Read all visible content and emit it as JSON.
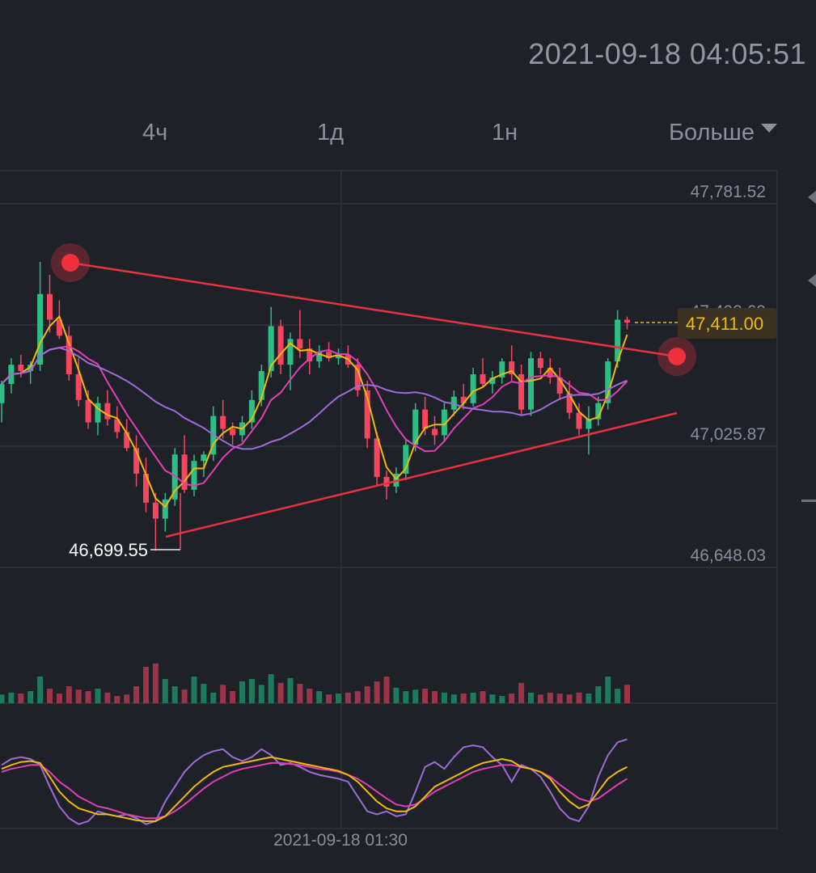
{
  "header": {
    "datetime": "2021-09-18 04:05:51"
  },
  "tabs": [
    {
      "label": "4ч"
    },
    {
      "label": "1д"
    },
    {
      "label": "1н"
    }
  ],
  "more": {
    "label": "Больше",
    "icon": "caret-down-icon"
  },
  "colors": {
    "background": "#1f2129",
    "up": "#2ebd85",
    "down": "#f6465d",
    "volume_up": "#1e7a5c",
    "volume_down": "#9b3547",
    "ma_fast": "#f0b90b",
    "ma_mid": "#e040b6",
    "ma_slow": "#9c6cd8",
    "trendline": "#e8333f",
    "price_tag_bg": "#3b3222",
    "price_tag_text": "#f0b90b"
  },
  "chart_data": {
    "type": "candlestick",
    "price_axis": {
      "ticks": [
        "47,781.52",
        "47,403.69",
        "47,025.87",
        "46,648.03"
      ],
      "range": [
        46648.03,
        47781.52
      ]
    },
    "current_price": "47,411.00",
    "low_marker": {
      "label": "46,699.55",
      "value": 46699.55
    },
    "time_axis": {
      "label": "2021-09-18 01:30"
    },
    "candles": [
      [
        47160,
        47230,
        47100,
        47220
      ],
      [
        47220,
        47300,
        47190,
        47280
      ],
      [
        47280,
        47310,
        47240,
        47260
      ],
      [
        47260,
        47290,
        47220,
        47280
      ],
      [
        47280,
        47600,
        47260,
        47500
      ],
      [
        47500,
        47560,
        47380,
        47420
      ],
      [
        47420,
        47480,
        47360,
        47370
      ],
      [
        47370,
        47400,
        47230,
        47250
      ],
      [
        47250,
        47300,
        47150,
        47170
      ],
      [
        47170,
        47200,
        47080,
        47100
      ],
      [
        47100,
        47180,
        47060,
        47160
      ],
      [
        47160,
        47200,
        47090,
        47110
      ],
      [
        47110,
        47150,
        47050,
        47070
      ],
      [
        47070,
        47110,
        47010,
        47020
      ],
      [
        47020,
        47060,
        46900,
        46940
      ],
      [
        46940,
        46990,
        46820,
        46850
      ],
      [
        46850,
        46880,
        46700,
        46800
      ],
      [
        46800,
        46880,
        46760,
        46860
      ],
      [
        46860,
        47020,
        46840,
        47000
      ],
      [
        47000,
        47060,
        46880,
        46890
      ],
      [
        46890,
        47000,
        46870,
        46980
      ],
      [
        46980,
        47010,
        46930,
        47000
      ],
      [
        47000,
        47150,
        46980,
        47120
      ],
      [
        47120,
        47170,
        47050,
        47080
      ],
      [
        47080,
        47100,
        47030,
        47060
      ],
      [
        47060,
        47120,
        47040,
        47100
      ],
      [
        47100,
        47200,
        47080,
        47170
      ],
      [
        47170,
        47280,
        47150,
        47260
      ],
      [
        47260,
        47460,
        47240,
        47400
      ],
      [
        47400,
        47420,
        47250,
        47280
      ],
      [
        47280,
        47380,
        47200,
        47360
      ],
      [
        47360,
        47450,
        47300,
        47330
      ],
      [
        47330,
        47360,
        47250,
        47290
      ],
      [
        47290,
        47340,
        47270,
        47320
      ],
      [
        47320,
        47350,
        47290,
        47300
      ],
      [
        47300,
        47330,
        47280,
        47310
      ],
      [
        47310,
        47340,
        47270,
        47280
      ],
      [
        47280,
        47300,
        47180,
        47200
      ],
      [
        47200,
        47230,
        47020,
        47050
      ],
      [
        47050,
        47070,
        46900,
        46930
      ],
      [
        46930,
        46950,
        46860,
        46900
      ],
      [
        46900,
        46960,
        46880,
        46940
      ],
      [
        46940,
        47050,
        46920,
        47030
      ],
      [
        47030,
        47160,
        47010,
        47140
      ],
      [
        47140,
        47180,
        47060,
        47080
      ],
      [
        47080,
        47120,
        47030,
        47060
      ],
      [
        47060,
        47160,
        47040,
        47140
      ],
      [
        47140,
        47200,
        47120,
        47180
      ],
      [
        47180,
        47220,
        47140,
        47160
      ],
      [
        47160,
        47270,
        47150,
        47250
      ],
      [
        47250,
        47300,
        47210,
        47220
      ],
      [
        47220,
        47260,
        47190,
        47240
      ],
      [
        47240,
        47300,
        47220,
        47290
      ],
      [
        47290,
        47340,
        47230,
        47250
      ],
      [
        47250,
        47280,
        47120,
        47140
      ],
      [
        47140,
        47320,
        47120,
        47300
      ],
      [
        47300,
        47320,
        47250,
        47270
      ],
      [
        47270,
        47300,
        47220,
        47240
      ],
      [
        47240,
        47270,
        47170,
        47190
      ],
      [
        47190,
        47230,
        47110,
        47130
      ],
      [
        47130,
        47160,
        47060,
        47080
      ],
      [
        47080,
        47150,
        47000,
        47110
      ],
      [
        47110,
        47180,
        47090,
        47160
      ],
      [
        47160,
        47300,
        47140,
        47290
      ],
      [
        47290,
        47450,
        47270,
        47420
      ],
      [
        47420,
        47430,
        47390,
        47411
      ]
    ],
    "volumes": [
      0.18,
      0.22,
      0.2,
      0.25,
      0.55,
      0.3,
      0.2,
      0.35,
      0.28,
      0.25,
      0.3,
      0.22,
      0.15,
      0.18,
      0.35,
      0.75,
      0.82,
      0.5,
      0.35,
      0.28,
      0.55,
      0.4,
      0.22,
      0.38,
      0.25,
      0.45,
      0.5,
      0.38,
      0.6,
      0.42,
      0.52,
      0.4,
      0.3,
      0.25,
      0.18,
      0.2,
      0.22,
      0.25,
      0.35,
      0.45,
      0.55,
      0.32,
      0.25,
      0.28,
      0.3,
      0.25,
      0.22,
      0.18,
      0.2,
      0.22,
      0.25,
      0.18,
      0.15,
      0.2,
      0.42,
      0.22,
      0.18,
      0.22,
      0.2,
      0.18,
      0.22,
      0.2,
      0.35,
      0.55,
      0.3,
      0.38
    ],
    "oscillator": {
      "fast": [
        0.58,
        0.62,
        0.65,
        0.66,
        0.64,
        0.5,
        0.35,
        0.25,
        0.18,
        0.15,
        0.12,
        0.12,
        0.1,
        0.08,
        0.06,
        0.05,
        0.05,
        0.1,
        0.2,
        0.3,
        0.4,
        0.48,
        0.55,
        0.6,
        0.62,
        0.64,
        0.66,
        0.68,
        0.7,
        0.68,
        0.66,
        0.64,
        0.62,
        0.6,
        0.58,
        0.56,
        0.52,
        0.45,
        0.35,
        0.25,
        0.18,
        0.15,
        0.15,
        0.2,
        0.3,
        0.4,
        0.45,
        0.5,
        0.55,
        0.6,
        0.64,
        0.66,
        0.68,
        0.66,
        0.6,
        0.58,
        0.55,
        0.48,
        0.35,
        0.25,
        0.18,
        0.22,
        0.35,
        0.48,
        0.55,
        0.6
      ],
      "mid": [
        0.55,
        0.58,
        0.6,
        0.62,
        0.62,
        0.55,
        0.45,
        0.38,
        0.3,
        0.25,
        0.2,
        0.18,
        0.15,
        0.12,
        0.1,
        0.08,
        0.08,
        0.1,
        0.15,
        0.22,
        0.3,
        0.38,
        0.45,
        0.5,
        0.55,
        0.58,
        0.6,
        0.62,
        0.64,
        0.64,
        0.63,
        0.62,
        0.6,
        0.58,
        0.57,
        0.55,
        0.52,
        0.48,
        0.42,
        0.35,
        0.28,
        0.22,
        0.2,
        0.22,
        0.28,
        0.35,
        0.4,
        0.45,
        0.5,
        0.55,
        0.58,
        0.6,
        0.62,
        0.62,
        0.6,
        0.58,
        0.55,
        0.5,
        0.42,
        0.35,
        0.28,
        0.25,
        0.28,
        0.35,
        0.42,
        0.48
      ],
      "slow": [
        0.62,
        0.68,
        0.7,
        0.68,
        0.62,
        0.4,
        0.2,
        0.08,
        0.02,
        0.05,
        0.15,
        0.12,
        0.1,
        0.12,
        0.08,
        0.02,
        0.05,
        0.25,
        0.4,
        0.55,
        0.65,
        0.72,
        0.76,
        0.78,
        0.7,
        0.66,
        0.7,
        0.78,
        0.72,
        0.62,
        0.64,
        0.6,
        0.55,
        0.52,
        0.5,
        0.48,
        0.45,
        0.3,
        0.15,
        0.12,
        0.15,
        0.1,
        0.12,
        0.35,
        0.6,
        0.65,
        0.58,
        0.7,
        0.8,
        0.82,
        0.8,
        0.7,
        0.62,
        0.45,
        0.62,
        0.58,
        0.5,
        0.35,
        0.18,
        0.08,
        0.05,
        0.2,
        0.5,
        0.72,
        0.85,
        0.88
      ]
    }
  }
}
